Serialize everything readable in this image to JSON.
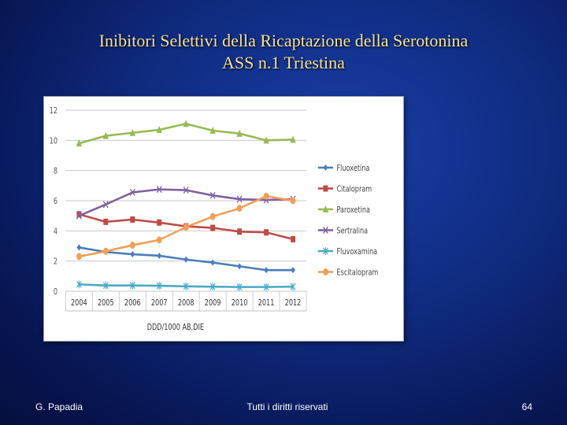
{
  "slide": {
    "title_line1": "Inibitori Selettivi della Ricaptazione della Serotonina",
    "title_line2": "ASS n.1 Triestina",
    "footer_left": "G. Papadia",
    "footer_center": "Tutti i diritti riservati",
    "page_number": "64"
  },
  "chart_data": {
    "type": "line",
    "title": "",
    "xlabel": "DDD/1000 AB.DIE",
    "ylabel": "",
    "categories": [
      "2004",
      "2005",
      "2006",
      "2007",
      "2008",
      "2009",
      "2010",
      "2011",
      "2012"
    ],
    "ylim": [
      0,
      12
    ],
    "yticks": [
      0,
      2,
      4,
      6,
      8,
      10,
      12
    ],
    "grid": true,
    "legend_position": "right",
    "series": [
      {
        "name": "Fluoxetina",
        "color": "#4a7ebb",
        "marker": "diamond",
        "values": [
          2.9,
          2.6,
          2.45,
          2.35,
          2.1,
          1.9,
          1.65,
          1.4,
          1.4
        ]
      },
      {
        "name": "Citalopram",
        "color": "#be4b48",
        "marker": "square",
        "values": [
          5.1,
          4.6,
          4.75,
          4.55,
          4.3,
          4.2,
          3.95,
          3.9,
          3.45
        ]
      },
      {
        "name": "Paroxetina",
        "color": "#98b954",
        "marker": "triangle",
        "values": [
          9.8,
          10.3,
          10.5,
          10.7,
          11.1,
          10.65,
          10.45,
          10.0,
          10.05
        ]
      },
      {
        "name": "Sertralina",
        "color": "#7d60a0",
        "marker": "x",
        "values": [
          5.0,
          5.75,
          6.55,
          6.75,
          6.7,
          6.35,
          6.1,
          6.05,
          6.1
        ]
      },
      {
        "name": "Fluvoxamina",
        "color": "#46aac5",
        "marker": "star",
        "values": [
          0.45,
          0.38,
          0.38,
          0.36,
          0.32,
          0.3,
          0.28,
          0.28,
          0.3
        ]
      },
      {
        "name": "Escitalopram",
        "color": "#f59d56",
        "marker": "circle",
        "values": [
          2.3,
          2.65,
          3.05,
          3.4,
          4.25,
          4.95,
          5.5,
          6.3,
          6.0
        ]
      }
    ]
  }
}
